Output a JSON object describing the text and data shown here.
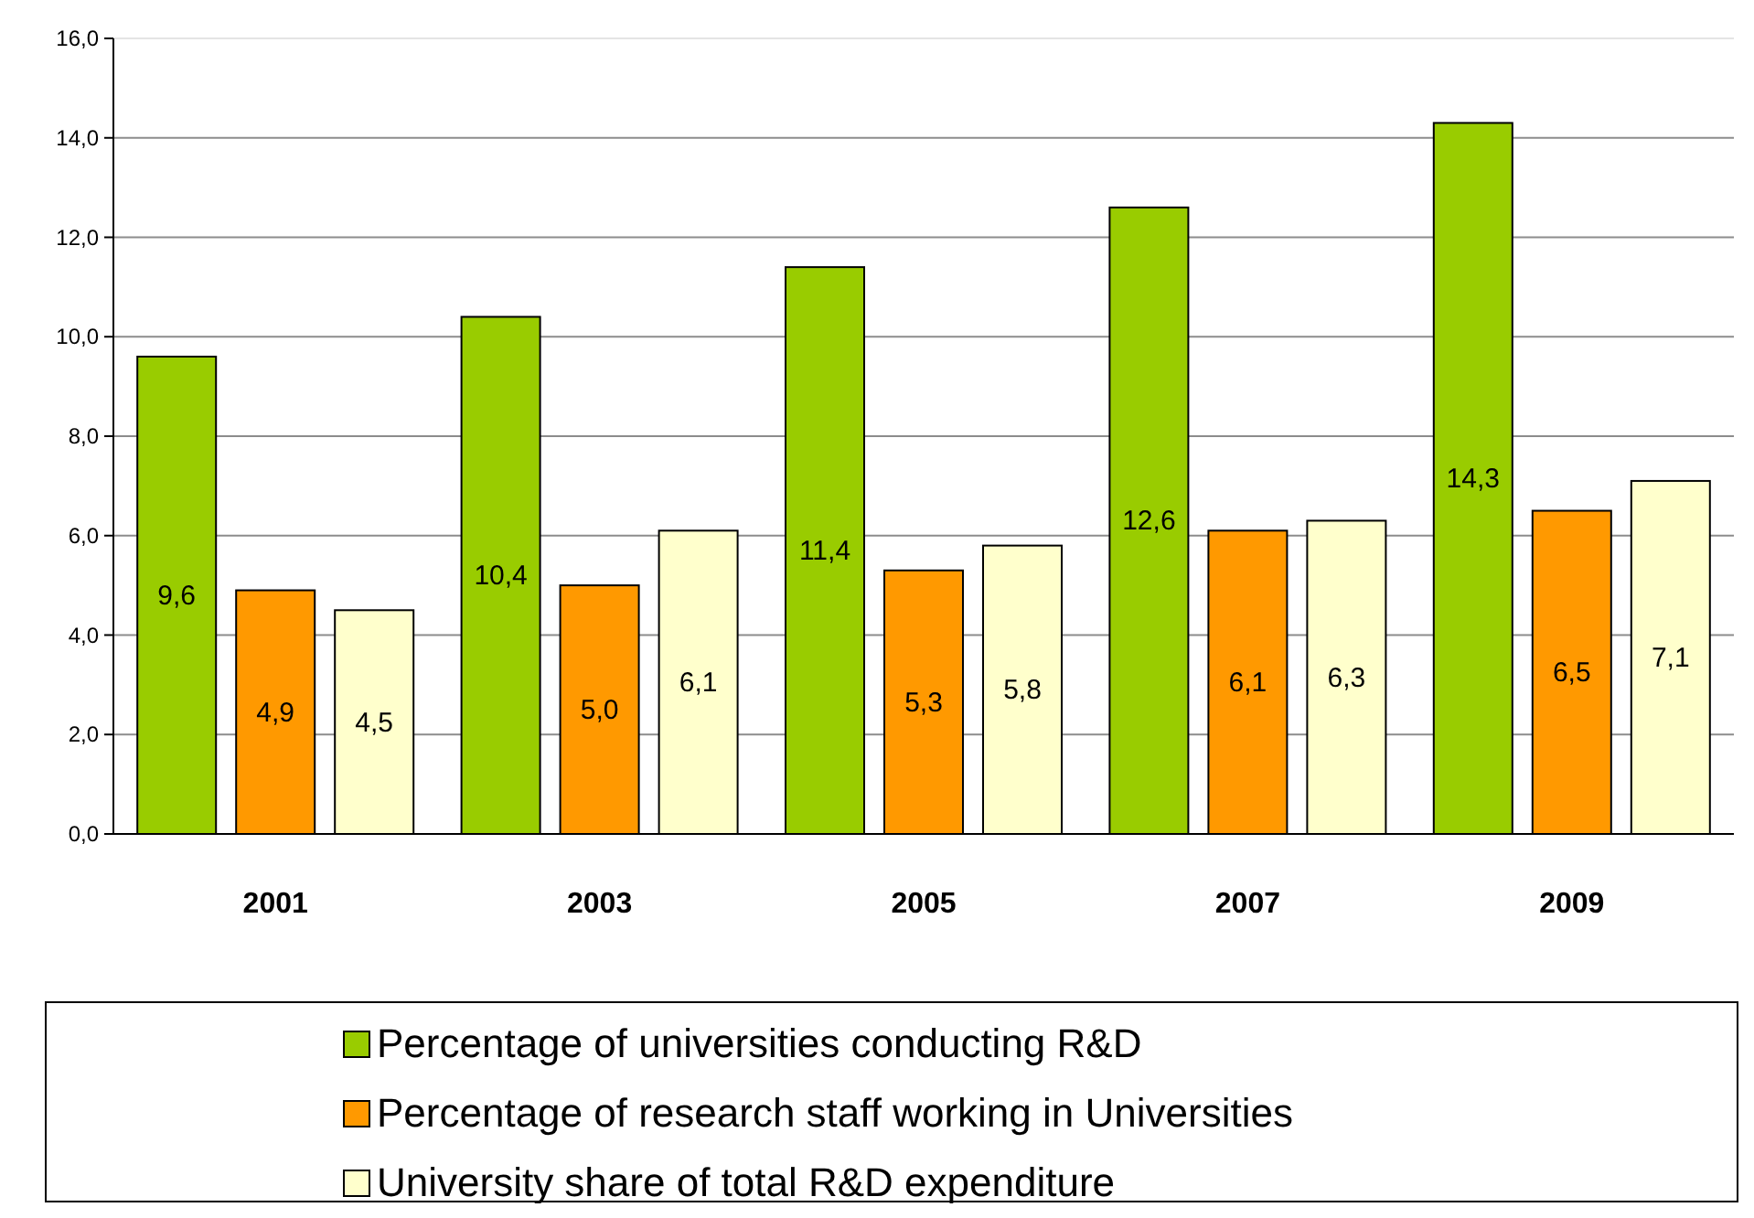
{
  "chart_data": {
    "type": "bar",
    "categories": [
      "2001",
      "2003",
      "2005",
      "2007",
      "2009"
    ],
    "series": [
      {
        "name": "Percentage of universities conducting R&D",
        "color": "#99cc00",
        "values": [
          9.6,
          10.4,
          11.4,
          12.6,
          14.3
        ],
        "value_labels": [
          "9,6",
          "10,4",
          "11,4",
          "12,6",
          "14,3"
        ]
      },
      {
        "name": "Percentage of research staff working in Universities",
        "color": "#ff9900",
        "values": [
          4.9,
          5.0,
          5.3,
          6.1,
          6.5
        ],
        "value_labels": [
          "4,9",
          "5,0",
          "5,3",
          "6,1",
          "6,5"
        ]
      },
      {
        "name": "University share of total R&D expenditure",
        "color": "#ffffcc",
        "values": [
          4.5,
          6.1,
          5.8,
          6.3,
          7.1
        ],
        "value_labels": [
          "4,5",
          "6,1",
          "5,8",
          "6,3",
          "7,1"
        ]
      }
    ],
    "ylim": [
      0,
      16
    ],
    "yticks": [
      {
        "value": 0,
        "label": "0,0"
      },
      {
        "value": 2,
        "label": "2,0"
      },
      {
        "value": 4,
        "label": "4,0"
      },
      {
        "value": 6,
        "label": "6,0"
      },
      {
        "value": 8,
        "label": "8,0"
      },
      {
        "value": 10,
        "label": "10,0"
      },
      {
        "value": 12,
        "label": "12,0"
      },
      {
        "value": 14,
        "label": "14,0"
      },
      {
        "value": 16,
        "label": "16,0"
      }
    ],
    "grid": "y",
    "legend": "bottom"
  }
}
